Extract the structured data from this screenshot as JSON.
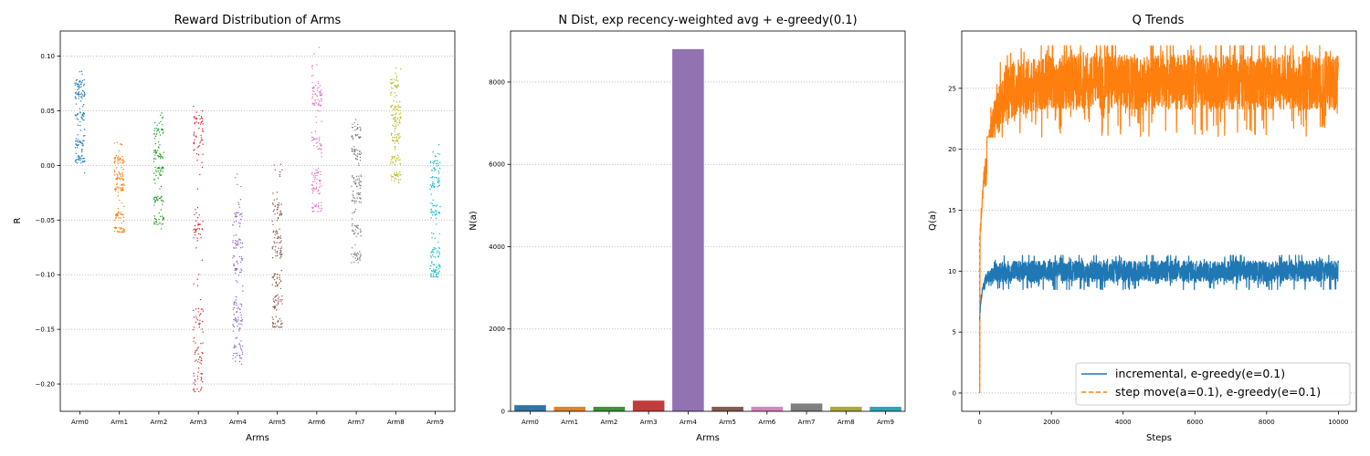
{
  "chart_data": [
    {
      "type": "scatter",
      "title": "Reward Distribution of Arms",
      "xlabel": "Arms",
      "ylabel": "R",
      "categories": [
        "Arm0",
        "Arm1",
        "Arm2",
        "Arm3",
        "Arm4",
        "Arm5",
        "Arm6",
        "Arm7",
        "Arm8",
        "Arm9"
      ],
      "ylim": [
        -0.225,
        0.123
      ],
      "yticks": [
        -0.2,
        -0.15,
        -0.1,
        -0.05,
        0.0,
        0.05,
        0.1
      ],
      "ytick_labels": [
        "−0.20",
        "−0.15",
        "−0.10",
        "−0.05",
        "0.00",
        "0.05",
        "0.10"
      ],
      "grid": "y",
      "colors": [
        "#1f77b4",
        "#ff7f0e",
        "#2ca02c",
        "#d62728",
        "#9467bd",
        "#8c564b",
        "#e377c2",
        "#7f7f7f",
        "#bcbd22",
        "#17becf"
      ],
      "series": [
        {
          "category": "Arm0",
          "range": [
            -0.007,
            0.086
          ],
          "clusters": [
            0.075,
            0.065,
            0.045,
            0.02,
            0.005
          ]
        },
        {
          "category": "Arm1",
          "range": [
            -0.061,
            0.021
          ],
          "clusters": [
            0.005,
            -0.01,
            -0.02,
            -0.045,
            -0.06
          ]
        },
        {
          "category": "Arm2",
          "range": [
            -0.058,
            0.048
          ],
          "clusters": [
            0.03,
            0.01,
            -0.005,
            -0.03,
            -0.05
          ]
        },
        {
          "category": "Arm3",
          "range": [
            -0.207,
            0.054
          ],
          "clusters": [
            0.04,
            0.02,
            -0.06,
            -0.14,
            -0.17,
            -0.2
          ]
        },
        {
          "category": "Arm4",
          "range": [
            -0.182,
            -0.008
          ],
          "clusters": [
            -0.05,
            -0.07,
            -0.09,
            -0.13,
            -0.145,
            -0.17
          ]
        },
        {
          "category": "Arm5",
          "range": [
            -0.148,
            0.001
          ],
          "clusters": [
            -0.04,
            -0.065,
            -0.08,
            -0.105,
            -0.125,
            -0.145
          ]
        },
        {
          "category": "Arm6",
          "range": [
            -0.042,
            0.108
          ],
          "clusters": [
            0.07,
            0.06,
            0.02,
            -0.01,
            -0.02,
            -0.04
          ]
        },
        {
          "category": "Arm7",
          "range": [
            -0.089,
            0.042
          ],
          "clusters": [
            0.03,
            0.01,
            -0.015,
            -0.03,
            -0.06,
            -0.085
          ]
        },
        {
          "category": "Arm8",
          "range": [
            -0.016,
            0.089
          ],
          "clusters": [
            0.075,
            0.05,
            0.04,
            0.025,
            0.005,
            -0.01
          ]
        },
        {
          "category": "Arm9",
          "range": [
            -0.102,
            0.019
          ],
          "clusters": [
            0.0,
            -0.015,
            -0.04,
            -0.08,
            -0.095,
            -0.1
          ]
        }
      ]
    },
    {
      "type": "bar",
      "title": "N Dist, exp recency-weighted avg + e-greedy(0.1)",
      "xlabel": "Arms",
      "ylabel": "N(a)",
      "categories": [
        "Arm0",
        "Arm1",
        "Arm2",
        "Arm3",
        "Arm4",
        "Arm5",
        "Arm6",
        "Arm7",
        "Arm8",
        "Arm9"
      ],
      "values": [
        150,
        110,
        110,
        260,
        8800,
        110,
        110,
        190,
        110,
        110
      ],
      "ylim": [
        0,
        9240
      ],
      "yticks": [
        0,
        2000,
        4000,
        6000,
        8000
      ],
      "ytick_labels": [
        "0",
        "2000",
        "4000",
        "6000",
        "8000"
      ],
      "grid": "y",
      "colors": [
        "#3274a1",
        "#e1812c",
        "#3a923a",
        "#c03d3e",
        "#9372b2",
        "#845b53",
        "#d684bd",
        "#7f7f7f",
        "#a9aa35",
        "#2ea4b1"
      ]
    },
    {
      "type": "line",
      "title": "Q Trends",
      "xlabel": "Steps",
      "ylabel": "Q(a)",
      "xlim": [
        -500,
        10500
      ],
      "ylim": [
        -1.5,
        29.7
      ],
      "xticks": [
        0,
        2000,
        4000,
        6000,
        8000,
        10000
      ],
      "xtick_labels": [
        "0",
        "2000",
        "4000",
        "6000",
        "8000",
        "10000"
      ],
      "yticks": [
        0,
        5,
        10,
        15,
        20,
        25
      ],
      "ytick_labels": [
        "0",
        "5",
        "10",
        "15",
        "20",
        "25"
      ],
      "grid": "y",
      "legend": "lower-right",
      "series": [
        {
          "name": "incremental, e-greedy(e=0.1)",
          "color": "#1f77b4",
          "style": "solid",
          "x": [
            0,
            30,
            80,
            150,
            250,
            400,
            600,
            800,
            1000,
            2000,
            3000,
            4000,
            5000,
            6000,
            7000,
            8000,
            9000,
            10000
          ],
          "y": [
            6,
            7.5,
            8.5,
            9.2,
            9.6,
            9.8,
            9.9,
            10.0,
            10.0,
            10.0,
            10.0,
            10.0,
            10.0,
            10.0,
            10.0,
            10.0,
            10.0,
            10.0
          ],
          "noise_band": [
            8.5,
            11.3
          ]
        },
        {
          "name": "step move(a=0.1), e-greedy(e=0.1)",
          "color": "#ff7f0e",
          "style": "dashed",
          "x": [
            0,
            10,
            50,
            100,
            200,
            300,
            500,
            700,
            1000,
            1500,
            2000,
            3000,
            4000,
            5000,
            6000,
            7000,
            8000,
            9000,
            10000
          ],
          "y": [
            0,
            13,
            15,
            17,
            19,
            21,
            23,
            24.5,
            25,
            25.3,
            25.5,
            25.5,
            25.5,
            25.5,
            25.5,
            25.5,
            25.5,
            25.5,
            25.5
          ],
          "noise_band": [
            21,
            28.5
          ]
        }
      ]
    }
  ]
}
